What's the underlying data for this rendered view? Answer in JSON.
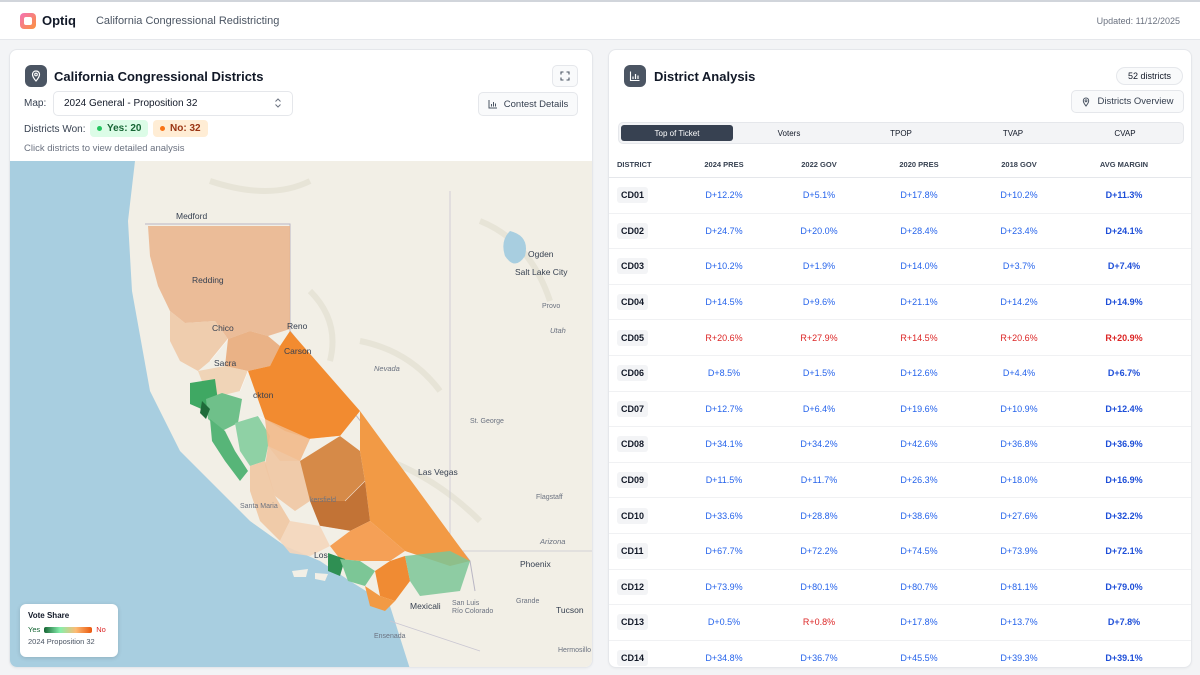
{
  "app": {
    "brand": "Optiq",
    "subtitle": "California Congressional Redistricting",
    "updated": "Updated: 11/12/2025"
  },
  "left": {
    "title": "California Congressional Districts",
    "map_label": "Map:",
    "map_value": "2024 General - Proposition 32",
    "contest_button": "Contest Details",
    "districts_won_label": "Districts Won:",
    "yes_pill": "Yes: 20",
    "no_pill": "No: 32",
    "hint": "Click districts to view detailed analysis",
    "legend": {
      "title": "Vote Share",
      "yes": "Yes",
      "no": "No",
      "subtitle": "2024 Proposition 32"
    },
    "cities": {
      "medford": "Medford",
      "redding": "Redding",
      "chico": "Chico",
      "sacramento": "Sacra",
      "reno": "Reno",
      "carson": "Carson",
      "stockton": "ckton",
      "nevada": "Nevada",
      "ogden": "Ogden",
      "slc": "Salt Lake City",
      "provo": "Provo",
      "utah": "Utah",
      "stgeorge": "St. George",
      "lasvegas": "Las Vegas",
      "flagstaff": "Flagstaff",
      "arizona": "Arizona",
      "phoenix": "Phoenix",
      "tucson": "Tucson",
      "mexicali": "Mexicali",
      "sanluis": "San Luis",
      "riocolorado": "Río Colorado",
      "santamaria": "Santa Maria",
      "la": "Los",
      "ensenada": "Ensenada",
      "hermosillo": "Hermosillo",
      "grande": "Grande",
      "bakersfield": "kersfield"
    }
  },
  "right": {
    "title": "District Analysis",
    "count": "52 districts",
    "overview_button": "Districts Overview",
    "tabs": [
      "Top of Ticket",
      "Voters",
      "TPOP",
      "TVAP",
      "CVAP"
    ],
    "columns": [
      "DISTRICT",
      "2024 PRES",
      "2022 GOV",
      "2020 PRES",
      "2018 GOV",
      "AVG MARGIN"
    ],
    "rows": [
      {
        "district": "CD01",
        "v": [
          "D+12.2%",
          "D+5.1%",
          "D+17.8%",
          "D+10.2%",
          "D+11.3%"
        ]
      },
      {
        "district": "CD02",
        "v": [
          "D+24.7%",
          "D+20.0%",
          "D+28.4%",
          "D+23.4%",
          "D+24.1%"
        ]
      },
      {
        "district": "CD03",
        "v": [
          "D+10.2%",
          "D+1.9%",
          "D+14.0%",
          "D+3.7%",
          "D+7.4%"
        ]
      },
      {
        "district": "CD04",
        "v": [
          "D+14.5%",
          "D+9.6%",
          "D+21.1%",
          "D+14.2%",
          "D+14.9%"
        ]
      },
      {
        "district": "CD05",
        "v": [
          "R+20.6%",
          "R+27.9%",
          "R+14.5%",
          "R+20.6%",
          "R+20.9%"
        ]
      },
      {
        "district": "CD06",
        "v": [
          "D+8.5%",
          "D+1.5%",
          "D+12.6%",
          "D+4.4%",
          "D+6.7%"
        ]
      },
      {
        "district": "CD07",
        "v": [
          "D+12.7%",
          "D+6.4%",
          "D+19.6%",
          "D+10.9%",
          "D+12.4%"
        ]
      },
      {
        "district": "CD08",
        "v": [
          "D+34.1%",
          "D+34.2%",
          "D+42.6%",
          "D+36.8%",
          "D+36.9%"
        ]
      },
      {
        "district": "CD09",
        "v": [
          "D+11.5%",
          "D+11.7%",
          "D+26.3%",
          "D+18.0%",
          "D+16.9%"
        ]
      },
      {
        "district": "CD10",
        "v": [
          "D+33.6%",
          "D+28.8%",
          "D+38.6%",
          "D+27.6%",
          "D+32.2%"
        ]
      },
      {
        "district": "CD11",
        "v": [
          "D+67.7%",
          "D+72.2%",
          "D+74.5%",
          "D+73.9%",
          "D+72.1%"
        ]
      },
      {
        "district": "CD12",
        "v": [
          "D+73.9%",
          "D+80.1%",
          "D+80.7%",
          "D+81.1%",
          "D+79.0%"
        ]
      },
      {
        "district": "CD13",
        "v": [
          "D+0.5%",
          "R+0.8%",
          "D+17.8%",
          "D+13.7%",
          "D+7.8%"
        ]
      },
      {
        "district": "CD14",
        "v": [
          "D+34.8%",
          "D+36.7%",
          "D+45.5%",
          "D+39.3%",
          "D+39.1%"
        ]
      }
    ]
  },
  "colors": {
    "dem": "#2563eb",
    "rep": "#dc2626",
    "yes": "#166534",
    "no": "#ea580c"
  }
}
